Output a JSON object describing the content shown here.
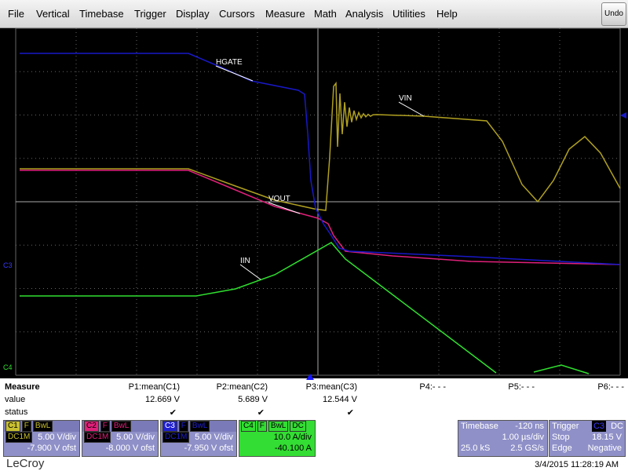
{
  "menu": {
    "items": [
      "File",
      "Vertical",
      "Timebase",
      "Trigger",
      "Display",
      "Cursors",
      "Measure",
      "Math",
      "Analysis",
      "Utilities",
      "Help"
    ],
    "undo": "Undo"
  },
  "display": {
    "channel_markers": [
      "C3",
      "C4"
    ],
    "trace_labels": [
      "HGATE",
      "VIN",
      "VOUT",
      "IIN"
    ]
  },
  "measure": {
    "title": "Measure",
    "row_labels": [
      "value",
      "status"
    ],
    "columns": [
      {
        "name": "P1:mean(C1)",
        "value": "12.669 V",
        "status": "✔"
      },
      {
        "name": "P2:mean(C2)",
        "value": "5.689 V",
        "status": "✔"
      },
      {
        "name": "P3:mean(C3)",
        "value": "12.544 V",
        "status": "✔"
      },
      {
        "name": "P4:- - -"
      },
      {
        "name": "P5:- - -"
      },
      {
        "name": "P6:- - -"
      }
    ]
  },
  "channels": [
    {
      "label": "C1",
      "tags": [
        "F",
        "BwL",
        "DC1M"
      ],
      "scale": "5.00 V/div",
      "offset": "-7.900 V ofst"
    },
    {
      "label": "C2",
      "tags": [
        "F",
        "BwL",
        "DC1M"
      ],
      "scale": "5.00 V/div",
      "offset": "-8.000 V ofst"
    },
    {
      "label": "C3",
      "tags": [
        "F",
        "BwL",
        "DC1M"
      ],
      "scale": "5.00 V/div",
      "offset": "-7.950 V ofst"
    },
    {
      "label": "C4",
      "tags": [
        "F",
        "BwL",
        "DC"
      ],
      "scale": "10.0 A/div",
      "offset": "-40.100 A"
    }
  ],
  "timebase": {
    "title": "Timebase",
    "delay": "-120 ns",
    "scale": "1.00 µs/div",
    "samples": "25.0 kS",
    "rate": "2.5 GS/s"
  },
  "trigger": {
    "title": "Trigger",
    "source": "C3",
    "coupling": "DC",
    "mode": "Stop",
    "level": "18.15 V",
    "type": "Edge",
    "slope": "Negative"
  },
  "footer": {
    "brand": "LeCroy",
    "timestamp": "3/4/2015 11:28:19 AM"
  }
}
